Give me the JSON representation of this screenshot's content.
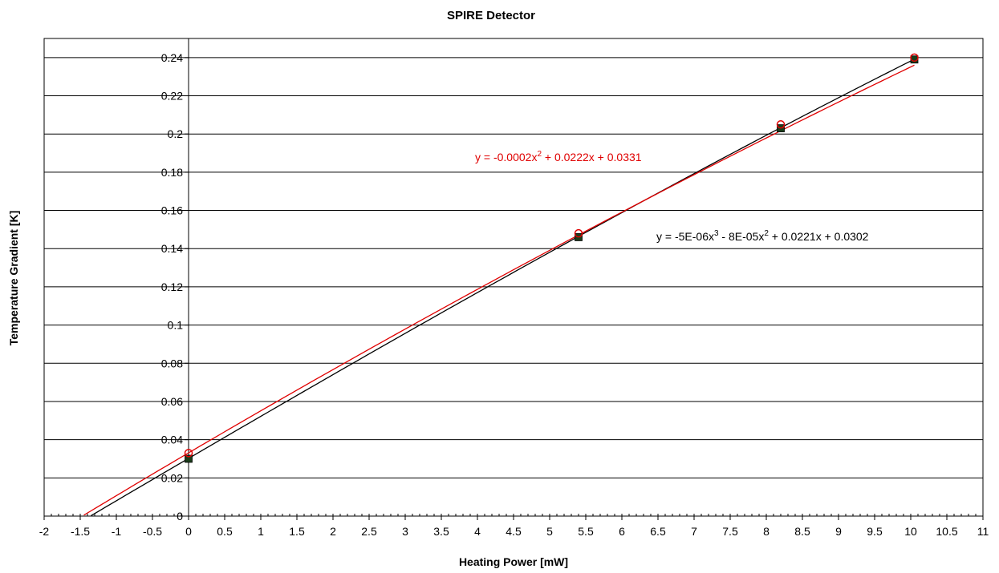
{
  "chart_data": {
    "type": "scatter",
    "title": "SPIRE Detector",
    "xlabel": "Heating Power [mW]",
    "ylabel": "Temperature Gradient [K]",
    "xlim": [
      -2,
      11
    ],
    "ylim": [
      0,
      0.25
    ],
    "xticks": [
      "-2",
      "-1.5",
      "-1",
      "-0.5",
      "0",
      "0.5",
      "1",
      "1.5",
      "2",
      "2.5",
      "3",
      "3.5",
      "4",
      "4.5",
      "5",
      "5.5",
      "6",
      "6.5",
      "7",
      "7.5",
      "8",
      "8.5",
      "9",
      "9.5",
      "10",
      "10.5",
      "11"
    ],
    "yticks": [
      "0",
      "0.02",
      "0.04",
      "0.06",
      "0.08",
      "0.1",
      "0.12",
      "0.14",
      "0.16",
      "0.18",
      "0.2",
      "0.22",
      "0.24"
    ],
    "grid": "horizontal",
    "series": [
      {
        "marker": "square",
        "color": "#000000",
        "marker_fill": "#1a3d1a",
        "points": [
          [
            0,
            0.03
          ],
          [
            5.4,
            0.146
          ],
          [
            8.2,
            0.203
          ],
          [
            10.05,
            0.239
          ]
        ],
        "trendline": {
          "equation_parts": {
            "base1": "y = -5E-06x",
            "sup1": "3",
            "base2": " - 8E-05x",
            "sup2": "2",
            "base3": " + 0.0221x + 0.0302"
          },
          "coefficients": [
            -5e-06,
            -8e-05,
            0.0221,
            0.0302
          ],
          "x_range": [
            -1.35,
            10.05
          ]
        }
      },
      {
        "marker": "circle",
        "color": "#e00000",
        "marker_fill": "none",
        "points": [
          [
            0,
            0.033
          ],
          [
            5.4,
            0.148
          ],
          [
            8.2,
            0.205
          ],
          [
            10.05,
            0.24
          ]
        ],
        "trendline": {
          "equation_parts": {
            "base1": "y = -0.0002x",
            "sup1": "2",
            "base2": " + 0.0222x + 0.0331",
            "sup2": "",
            "base3": ""
          },
          "coefficients": [
            0,
            -0.0002,
            0.0222,
            0.0331
          ],
          "x_range": [
            -1.45,
            10.05
          ]
        }
      }
    ]
  }
}
